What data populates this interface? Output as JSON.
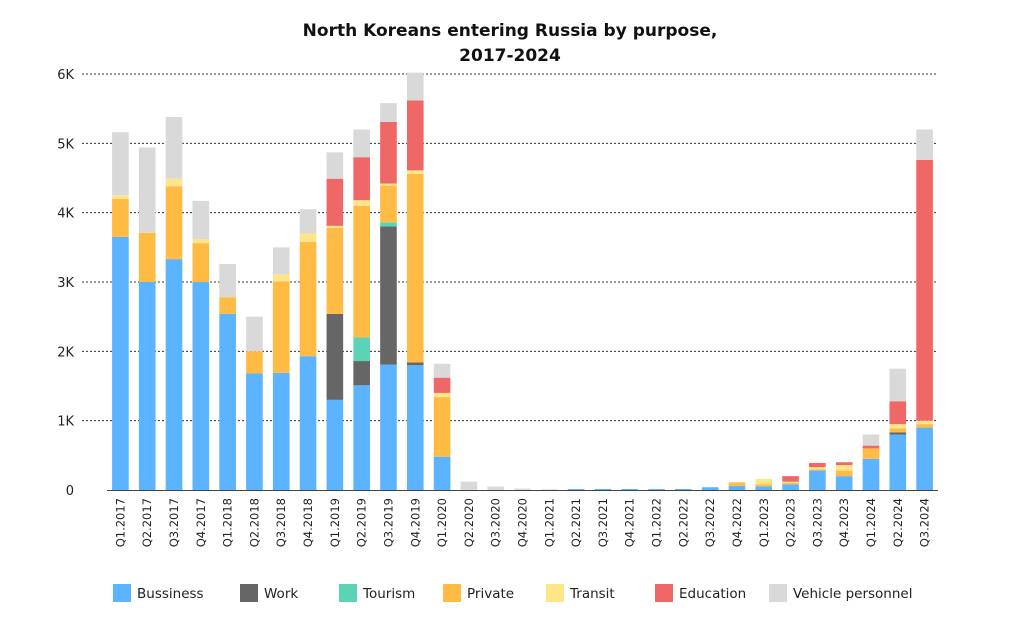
{
  "chart_data": {
    "type": "bar",
    "stacked": true,
    "title": [
      "North Koreans entering Russia by purpose,",
      "2017-2024"
    ],
    "xlabel": "",
    "ylabel": "",
    "ylim": [
      0,
      6000
    ],
    "yticks": [
      0,
      1000,
      2000,
      3000,
      4000,
      5000,
      6000
    ],
    "ytick_labels": [
      "0",
      "1K",
      "2K",
      "3K",
      "4K",
      "5K",
      "6K"
    ],
    "grid": "horizontal dotted",
    "legend_position": "bottom",
    "categories": [
      "Q1.2017",
      "Q2.2017",
      "Q3.2017",
      "Q4.2017",
      "Q1.2018",
      "Q2.2018",
      "Q3.2018",
      "Q4.2018",
      "Q1.2019",
      "Q2.2019",
      "Q3.2019",
      "Q4.2019",
      "Q1.2020",
      "Q2.2020",
      "Q3.2020",
      "Q4.2020",
      "Q1.2021",
      "Q2.2021",
      "Q3.2021",
      "Q4.2021",
      "Q1.2022",
      "Q2.2022",
      "Q3.2022",
      "Q4.2022",
      "Q1.2023",
      "Q2.2023",
      "Q3.2023",
      "Q4.2023",
      "Q1.2024",
      "Q2.2024",
      "Q3.2024"
    ],
    "series": [
      {
        "name": "Bussiness",
        "color": "#5cb3ff",
        "values": [
          3650,
          3000,
          3330,
          3000,
          2540,
          1680,
          1690,
          1930,
          1300,
          1510,
          1810,
          1800,
          480,
          0,
          0,
          0,
          0,
          15,
          15,
          15,
          15,
          15,
          40,
          60,
          50,
          80,
          280,
          200,
          450,
          800,
          900
        ]
      },
      {
        "name": "Work",
        "color": "#666666",
        "values": [
          0,
          0,
          0,
          0,
          0,
          0,
          0,
          0,
          1240,
          350,
          1990,
          40,
          0,
          0,
          0,
          0,
          0,
          0,
          0,
          0,
          0,
          0,
          0,
          0,
          0,
          0,
          0,
          0,
          0,
          30,
          0
        ]
      },
      {
        "name": "Tourism",
        "color": "#5dd3b6",
        "values": [
          0,
          0,
          0,
          0,
          0,
          0,
          0,
          0,
          0,
          340,
          60,
          0,
          0,
          0,
          0,
          0,
          0,
          0,
          0,
          0,
          0,
          0,
          0,
          0,
          0,
          0,
          0,
          0,
          0,
          0,
          0
        ]
      },
      {
        "name": "Private",
        "color": "#ffbb44",
        "values": [
          550,
          710,
          1050,
          560,
          240,
          320,
          1320,
          1650,
          1240,
          1900,
          530,
          2720,
          860,
          0,
          0,
          0,
          0,
          0,
          0,
          0,
          0,
          0,
          0,
          50,
          30,
          20,
          20,
          80,
          150,
          60,
          50
        ]
      },
      {
        "name": "Transit",
        "color": "#ffe58a",
        "values": [
          50,
          0,
          110,
          60,
          0,
          0,
          100,
          120,
          30,
          80,
          30,
          50,
          60,
          0,
          0,
          0,
          0,
          0,
          0,
          0,
          0,
          0,
          0,
          0,
          80,
          20,
          30,
          80,
          0,
          60,
          50
        ]
      },
      {
        "name": "Education",
        "color": "#f06767",
        "values": [
          0,
          0,
          0,
          0,
          0,
          0,
          0,
          0,
          680,
          620,
          890,
          1010,
          220,
          0,
          0,
          0,
          0,
          0,
          0,
          0,
          0,
          0,
          0,
          0,
          0,
          80,
          60,
          40,
          40,
          330,
          3760
        ]
      },
      {
        "name": "Vehicle personnel",
        "color": "#d9d9d9",
        "values": [
          910,
          1230,
          890,
          550,
          480,
          500,
          390,
          350,
          380,
          400,
          270,
          400,
          200,
          120,
          50,
          20,
          10,
          0,
          0,
          0,
          0,
          0,
          0,
          0,
          0,
          0,
          0,
          0,
          160,
          470,
          440
        ]
      }
    ]
  }
}
